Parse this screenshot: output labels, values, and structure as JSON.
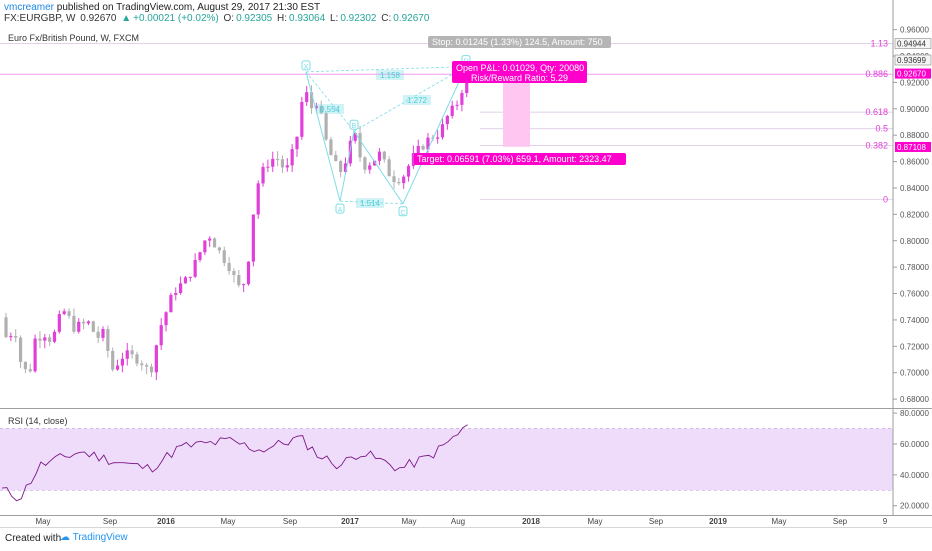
{
  "header": {
    "author": "vmcreamer",
    "published_text": "published on TradingView.com, August 29, 2017 21:30 EST",
    "symbol": "FX:EURGBP, W",
    "last": "0.92670",
    "change": "+0.00021 (+0.02%)",
    "open_label": "O:",
    "open": "0.92305",
    "high_label": "H:",
    "high": "0.93064",
    "low_label": "L:",
    "low": "0.92302",
    "close_label": "C:",
    "close": "0.92670"
  },
  "footer": {
    "created_with": "Created with",
    "brand": "TradingView"
  },
  "colors": {
    "bull": "#e040d8",
    "bear": "#b0b0b0",
    "pattern": "#7fdde6",
    "magenta": "#ff00cc",
    "rsi_line": "#7b1a86",
    "rsi_band": "#eedcfa",
    "fib": "#e040d8"
  },
  "chart_data": [
    {
      "type": "candlestick",
      "title": "Euro Fx/British Pound, W, FXCM",
      "y_ticks": [
        "0.96000",
        "0.94000",
        "0.92000",
        "0.90000",
        "0.88000",
        "0.86000",
        "0.84000",
        "0.82000",
        "0.80000",
        "0.78000",
        "0.76000",
        "0.74000",
        "0.72000",
        "0.70000",
        "0.68000"
      ],
      "ylim": [
        0.674,
        0.962
      ],
      "x_ticks": [
        "May",
        "Sep",
        "2016",
        "May",
        "Sep",
        "2017",
        "May",
        "Aug",
        "2018",
        "May",
        "Sep",
        "2019",
        "May",
        "Sep",
        "9"
      ],
      "price_tags": [
        "0.94944",
        "0.93699",
        "0.92670",
        "0.87108"
      ],
      "fib_levels": [
        {
          "label": "1.13",
          "value": 0.9494
        },
        {
          "label": "0.886",
          "value": 0.9262
        },
        {
          "label": "0.618",
          "value": 0.8975
        },
        {
          "label": "0.5",
          "value": 0.8849
        },
        {
          "label": "0.382",
          "value": 0.8722
        },
        {
          "label": "0",
          "value": 0.8312
        }
      ],
      "pattern_points": [
        "X",
        "A",
        "B",
        "C",
        "D"
      ],
      "pattern_ratios": [
        "0.554",
        "1.158",
        "1.272",
        "1.514"
      ],
      "position": {
        "stop_label": "Stop: 0.01245 (1.33%) 124.5, Amount: 750",
        "pnl_label": "Open P&L: 0.01029, Qty: 20080",
        "rr_label": "Risk/Reward Ratio: 5.29",
        "target_label": "Target: 0.06591 (7.03%) 659.1, Amount: 2323.47"
      }
    },
    {
      "type": "line",
      "title": "RSI (14, close)",
      "y_ticks": [
        "80.0000",
        "60.0000",
        "40.0000",
        "20.0000"
      ],
      "ylim": [
        14,
        82
      ],
      "band": [
        30,
        70
      ]
    }
  ]
}
